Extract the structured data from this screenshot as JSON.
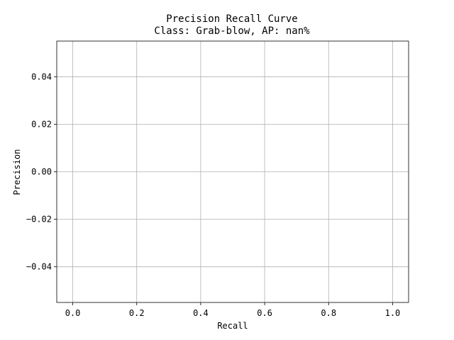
{
  "chart_data": {
    "type": "line",
    "title": "Precision Recall Curve",
    "subtitle": "Class: Grab-blow, AP: nan%",
    "xlabel": "Recall",
    "ylabel": "Precision",
    "xlim": [
      -0.05,
      1.05
    ],
    "ylim": [
      -0.055,
      0.055
    ],
    "xticks": [
      0.0,
      0.2,
      0.4,
      0.6,
      0.8,
      1.0
    ],
    "xtick_labels": [
      "0.0",
      "0.2",
      "0.4",
      "0.6",
      "0.8",
      "1.0"
    ],
    "yticks": [
      -0.04,
      -0.02,
      0.0,
      0.02,
      0.04
    ],
    "ytick_labels": [
      "−0.04",
      "−0.02",
      "0.00",
      "0.02",
      "0.04"
    ],
    "grid": true,
    "series": [
      {
        "x": [],
        "y": []
      }
    ]
  }
}
